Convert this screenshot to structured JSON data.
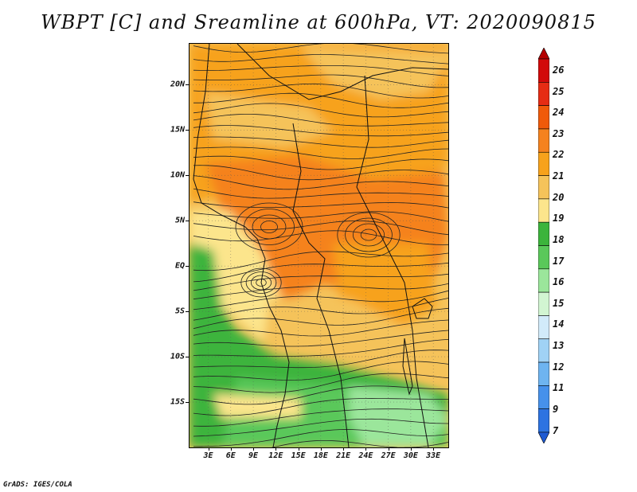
{
  "title": "WBPT [C] and Sreamline at 600hPa, VT: 2020090815",
  "footer": "GrADS: IGES/COLA",
  "map": {
    "lat_labels": [
      "20N",
      "15N",
      "10N",
      "5N",
      "EQ",
      "5S",
      "10S",
      "15S"
    ],
    "lat_values": [
      20,
      15,
      10,
      5,
      0,
      -5,
      -10,
      -15
    ],
    "lon_labels": [
      "3E",
      "6E",
      "9E",
      "12E",
      "15E",
      "18E",
      "21E",
      "24E",
      "27E",
      "30E",
      "33E"
    ],
    "lon_values": [
      3,
      6,
      9,
      12,
      15,
      18,
      21,
      24,
      27,
      30,
      33
    ],
    "lon_range": [
      0.5,
      35
    ],
    "lat_range": [
      -20,
      24.5
    ]
  },
  "colorbar": {
    "labels": [
      "26",
      "25",
      "24",
      "23",
      "22",
      "21",
      "20",
      "19",
      "18",
      "17",
      "16",
      "15",
      "14",
      "13",
      "12",
      "11",
      "9",
      "7"
    ],
    "colors": [
      "#b40000",
      "#d20a0a",
      "#e62c14",
      "#f05a0a",
      "#f5821e",
      "#f7a21c",
      "#f5c35a",
      "#fce58c",
      "#3cb43c",
      "#5ac85a",
      "#9be69b",
      "#d2f5d2",
      "#d2ebfa",
      "#a0d2f5",
      "#6eb4f0",
      "#4691eb",
      "#2d73e1",
      "#1e5ad2"
    ]
  },
  "field_colors": {
    "orange_dark": "#f5821e",
    "orange": "#f7a21c",
    "light_orange": "#f5c35a",
    "pale_yellow": "#fce58c",
    "green": "#3cb43c",
    "mid_green": "#5ac85a",
    "light_green": "#9be69b"
  }
}
